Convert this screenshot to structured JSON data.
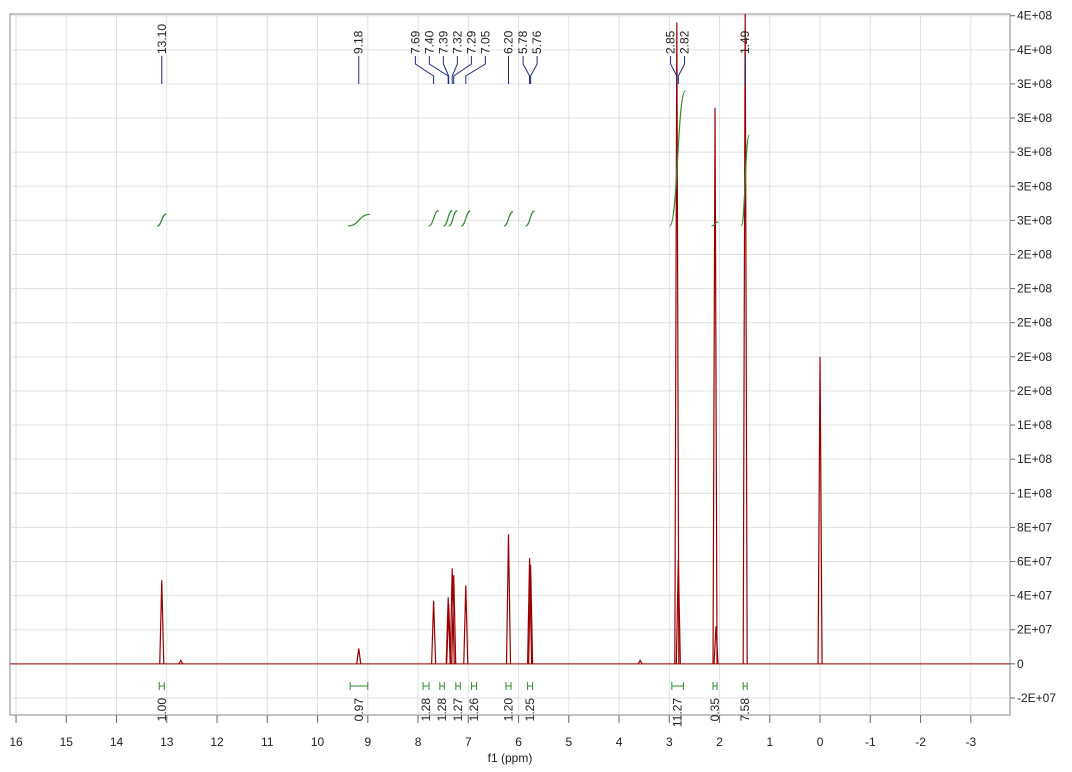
{
  "chart_data": {
    "type": "nmr",
    "x_label": "f1 (ppm)",
    "xlim": [
      16.12,
      -3.78
    ],
    "xticks": [
      16,
      15,
      14,
      13,
      12,
      11,
      10,
      9,
      8,
      7,
      6,
      5,
      4,
      3,
      2,
      1,
      0,
      -1,
      -2,
      -3
    ],
    "ylim": [
      -30000000,
      381000000
    ],
    "yticks": [
      {
        "value": -20000000,
        "label": "-2E+07"
      },
      0,
      {
        "value": 20000000,
        "label": "2E+07"
      },
      {
        "value": 40000000,
        "label": "4E+07"
      },
      {
        "value": 60000000,
        "label": "6E+07"
      },
      {
        "value": 80000000,
        "label": "8E+07"
      },
      {
        "value": 100000000,
        "label": "1E+08"
      },
      {
        "value": 120000000,
        "label": "1E+08"
      },
      {
        "value": 140000000,
        "label": "1E+08"
      },
      {
        "value": 160000000,
        "label": "2E+08"
      },
      {
        "value": 180000000,
        "label": "2E+08"
      },
      {
        "value": 200000000,
        "label": "2E+08"
      },
      {
        "value": 220000000,
        "label": "2E+08"
      },
      {
        "value": 240000000,
        "label": "2E+08"
      },
      {
        "value": 260000000,
        "label": "3E+08"
      },
      {
        "value": 280000000,
        "label": "3E+08"
      },
      {
        "value": 300000000,
        "label": "3E+08"
      },
      {
        "value": 320000000,
        "label": "3E+08"
      },
      {
        "value": 340000000,
        "label": "3E+08"
      },
      {
        "value": 360000000,
        "label": "4E+08"
      },
      {
        "value": 380000000,
        "label": "4E+08"
      }
    ],
    "grid": true,
    "spectrum": {
      "color": "#9b0000",
      "x": [
        13.1,
        12.72,
        9.18,
        7.69,
        7.4,
        7.39,
        7.32,
        7.29,
        7.05,
        6.2,
        5.78,
        5.76,
        3.58,
        2.85,
        2.82,
        2.09,
        2.07,
        1.49,
        0
      ],
      "values": [
        49000000,
        2000000,
        9000000,
        37000000,
        39000000,
        35000000,
        56000000,
        52000000,
        46000000,
        76000000,
        62000000,
        58000000,
        2000000,
        376000000,
        61000000,
        326000000,
        22000000,
        381000000,
        180000000
      ]
    },
    "peak_label_color": "#1f2a80",
    "peak_labels": [
      {
        "value": 13.1,
        "label": "13.10"
      },
      {
        "value": 9.18,
        "label": "9.18"
      },
      {
        "value": 7.69,
        "label": "7.69"
      },
      {
        "value": 7.4,
        "label": "7.40"
      },
      {
        "value": 7.39,
        "label": "7.39"
      },
      {
        "value": 7.32,
        "label": "7.32"
      },
      {
        "value": 7.29,
        "label": "7.29"
      },
      {
        "value": 7.05,
        "label": "7.05"
      },
      {
        "value": 6.2,
        "label": "6.20"
      },
      {
        "value": 5.78,
        "label": "5.78"
      },
      {
        "value": 5.76,
        "label": "5.76"
      },
      {
        "value": 2.85,
        "label": "2.85"
      },
      {
        "value": 2.82,
        "label": "2.82"
      },
      {
        "value": 1.49,
        "label": "1.49"
      }
    ],
    "integral_color": "#2e8b2e",
    "integrals": [
      {
        "from": 13.15,
        "to": 13.05,
        "value": 1,
        "label": "1.00"
      },
      {
        "from": 9.35,
        "to": 9.0,
        "value": 0.97,
        "label": "0.97"
      },
      {
        "from": 7.75,
        "to": 7.63,
        "value": 1.28,
        "label": "1.28"
      },
      {
        "from": 7.45,
        "to": 7.36,
        "value": 1.28,
        "label": "1.28"
      },
      {
        "from": 7.35,
        "to": 7.26,
        "value": 1.27,
        "label": "1.27"
      },
      {
        "from": 7.1,
        "to": 7.0,
        "value": 1.26,
        "label": "1.26"
      },
      {
        "from": 6.25,
        "to": 6.15,
        "value": 1.2,
        "label": "1.20"
      },
      {
        "from": 5.82,
        "to": 5.72,
        "value": 1.25,
        "label": "1.25"
      },
      {
        "from": 2.95,
        "to": 2.72,
        "value": 11.27,
        "label": "11.27"
      },
      {
        "from": 2.12,
        "to": 2.06,
        "value": 0.35,
        "label": "0.35"
      },
      {
        "from": 1.53,
        "to": 1.45,
        "value": 7.58,
        "label": "7.58"
      }
    ]
  }
}
